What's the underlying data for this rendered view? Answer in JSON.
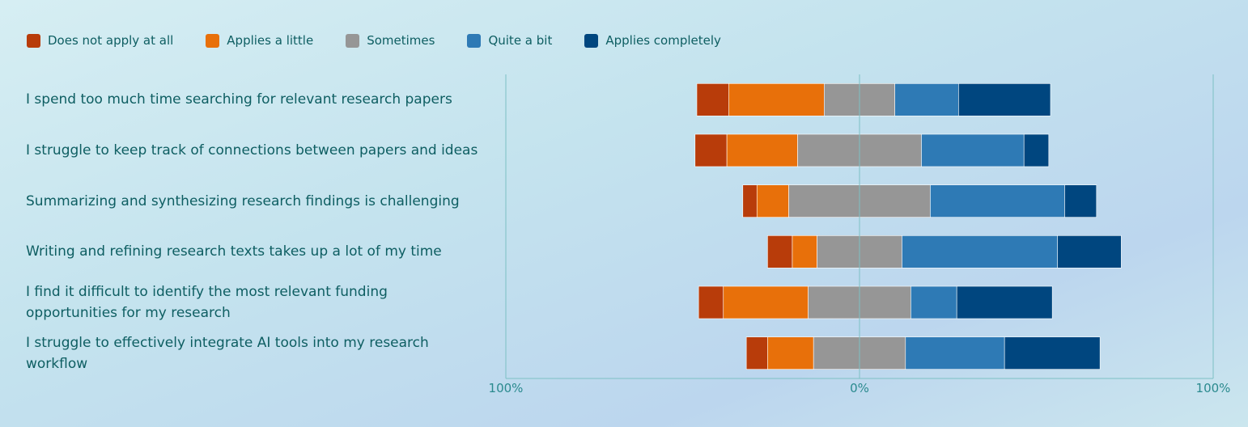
{
  "chart_data": {
    "type": "diverging-stacked-bar",
    "categories": [
      "I spend too much time searching for relevant research papers",
      "I struggle to keep track of connections between papers and ideas",
      "Summarizing and synthesizing research findings is challenging",
      "Writing and refining research texts takes up a lot of my time",
      "I find it difficult to identify the most relevant funding opportunities for my research",
      "I struggle to effectively integrate AI tools into my research workflow"
    ],
    "series": [
      {
        "name": "Does not apply at all",
        "color": "#b83c0a",
        "values": [
          9,
          9,
          4,
          7,
          7,
          6
        ]
      },
      {
        "name": "Applies a little",
        "color": "#e8700a",
        "values": [
          27,
          20,
          9,
          7,
          24,
          13
        ]
      },
      {
        "name": "Sometimes",
        "color": "#969696",
        "values": [
          20,
          35,
          40,
          24,
          29,
          26
        ]
      },
      {
        "name": "Quite a bit",
        "color": "#2e7ab5",
        "values": [
          18,
          29,
          38,
          44,
          13,
          28
        ]
      },
      {
        "name": "Applies completely",
        "color": "#00467f",
        "values": [
          26,
          7,
          9,
          18,
          27,
          27
        ]
      }
    ],
    "xlim": [
      -100,
      100
    ],
    "xticks": [
      {
        "value": -100,
        "label": "100%"
      },
      {
        "value": 0,
        "label": "0%"
      },
      {
        "value": 100,
        "label": "100%"
      }
    ],
    "neutral_series": 2
  }
}
